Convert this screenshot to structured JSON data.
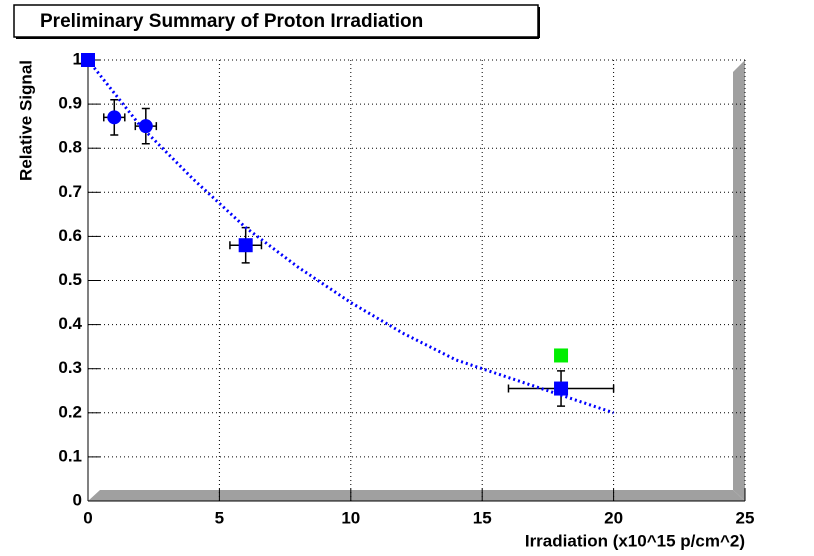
{
  "chart_data": {
    "type": "scatter",
    "title": "Preliminary Summary of Proton Irradiation",
    "x_label": "Irradiation (x10^15 p/cm^2)",
    "y_label": "Relative Signal",
    "xlim": [
      0,
      25
    ],
    "ylim": [
      0,
      1
    ],
    "xticks": [
      0,
      5,
      10,
      15,
      20,
      25
    ],
    "yticks": [
      0,
      0.1,
      0.2,
      0.3,
      0.4,
      0.5,
      0.6,
      0.7,
      0.8,
      0.9,
      1
    ],
    "grid": true,
    "series": [
      {
        "marker": "square",
        "color": "#0000ff",
        "x": [
          0,
          6,
          18
        ],
        "values": [
          1,
          0.58,
          0.255
        ],
        "xerr": [
          0,
          0.6,
          2
        ],
        "yerr": [
          0,
          0.04,
          0.04
        ]
      },
      {
        "marker": "circle",
        "color": "#0000ff",
        "x": [
          1,
          2.2
        ],
        "values": [
          0.87,
          0.85
        ],
        "xerr": [
          0.4,
          0.4
        ],
        "yerr": [
          0.04,
          0.04
        ]
      },
      {
        "marker": "square",
        "color": "#00ee00",
        "x": [
          18
        ],
        "values": [
          0.33
        ]
      },
      {
        "marker": "dotted-line",
        "color": "#0000ff",
        "x": [
          0,
          2,
          4,
          6,
          8,
          10,
          12,
          14,
          16,
          18,
          20
        ],
        "values": [
          1,
          0.85,
          0.73,
          0.62,
          0.53,
          0.45,
          0.38,
          0.32,
          0.28,
          0.24,
          0.2
        ]
      }
    ]
  }
}
